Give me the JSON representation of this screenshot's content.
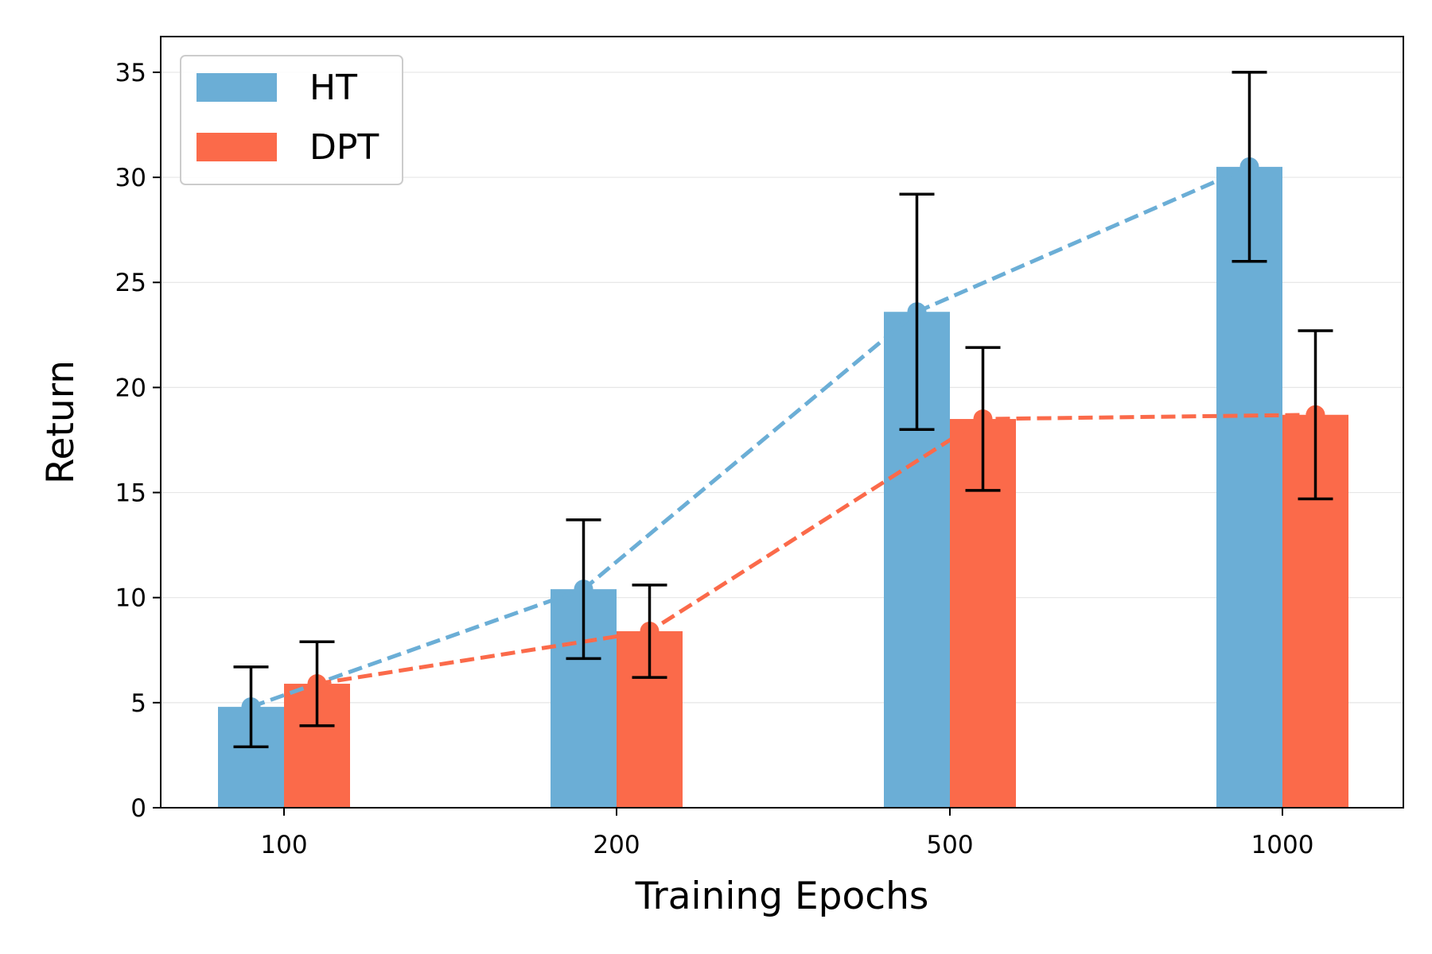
{
  "chart_data": {
    "type": "bar",
    "title": "",
    "xlabel": "Training Epochs",
    "ylabel": "Return",
    "categories": [
      "100",
      "200",
      "500",
      "1000"
    ],
    "ylim": [
      0,
      36.7
    ],
    "yticks": [
      0,
      5,
      10,
      15,
      20,
      25,
      30,
      35
    ],
    "grid": "horizontal",
    "legend": {
      "position": "top-left"
    },
    "series": [
      {
        "name": "HT",
        "color": "#6baed6",
        "values": [
          4.8,
          10.4,
          23.6,
          30.5
        ],
        "error": [
          1.9,
          3.3,
          5.6,
          4.5
        ],
        "line_style": "dashed",
        "markers": true
      },
      {
        "name": "DPT",
        "color": "#fb6a4a",
        "values": [
          5.9,
          8.4,
          18.5,
          18.7
        ],
        "error": [
          2.0,
          2.2,
          3.4,
          4.0
        ],
        "line_style": "dashed",
        "markers": true
      }
    ]
  }
}
